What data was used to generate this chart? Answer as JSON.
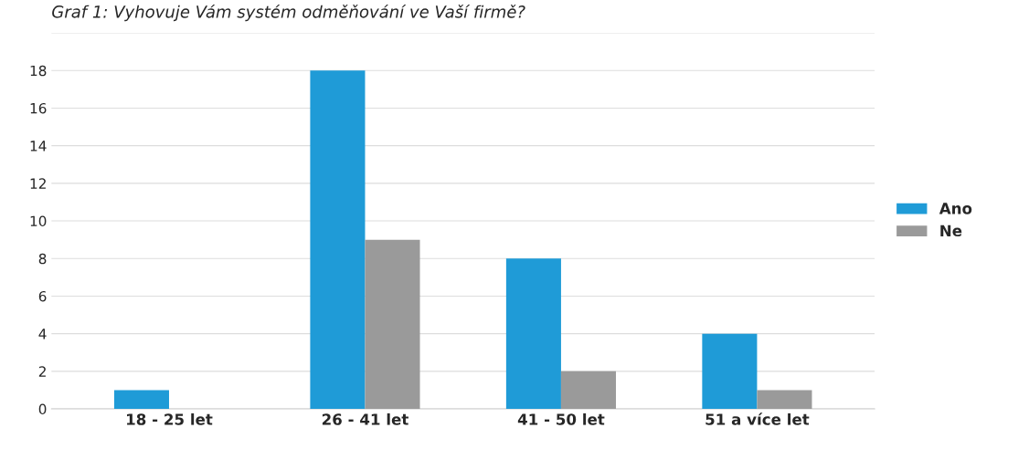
{
  "chart_data": {
    "type": "bar",
    "title": "Graf 1: Vyhovuje Vám systém odměňování ve Vaší firmě?",
    "categories": [
      "18 - 25 let",
      "26 - 41 let",
      "41 - 50 let",
      "51 a více let"
    ],
    "series": [
      {
        "name": "Ano",
        "color": "#1f9bd7",
        "values": [
          1,
          18,
          8,
          4
        ]
      },
      {
        "name": "Ne",
        "color": "#9a9a9a",
        "values": [
          0,
          9,
          2,
          1
        ]
      }
    ],
    "ylim": [
      0,
      20
    ],
    "yticks": [
      0,
      2,
      4,
      6,
      8,
      10,
      12,
      14,
      16,
      18,
      {
        "value": 20,
        "label": null
      }
    ],
    "grid": "y",
    "legend": "right"
  }
}
